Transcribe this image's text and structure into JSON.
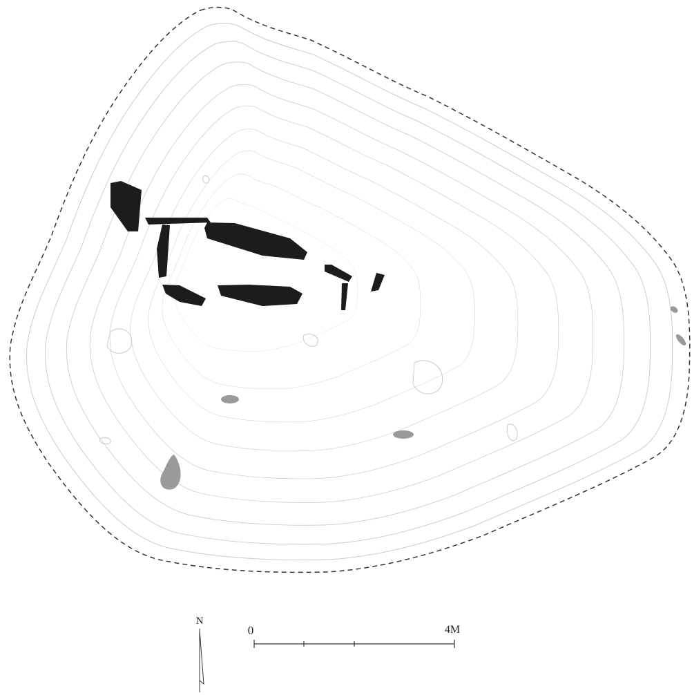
{
  "north_label": "N",
  "scale": {
    "start_label": "0",
    "end_label": "4M"
  }
}
